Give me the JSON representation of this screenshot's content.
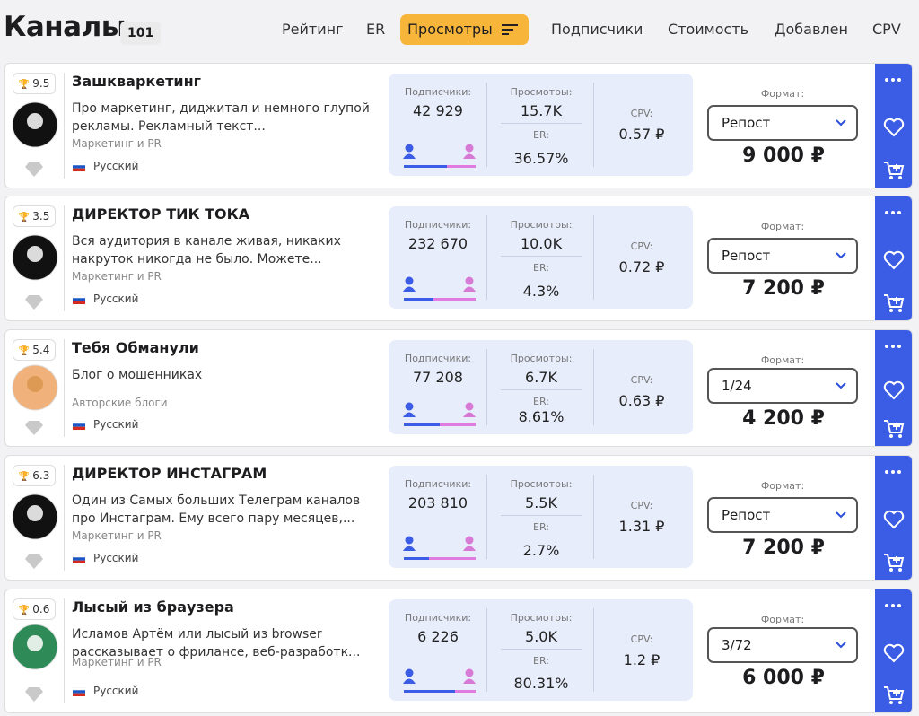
{
  "header": {
    "title": "Каналы",
    "count": "101",
    "tabs": [
      "Рейтинг",
      "ER",
      "Просмотры",
      "Подписчики",
      "Стоимость",
      "Добавлен",
      "CPV"
    ],
    "active_tab": 2
  },
  "labels": {
    "subscribers": "Подписчики:",
    "views": "Просмотры:",
    "er": "ER:",
    "cpv": "CPV:",
    "format": "Формат:"
  },
  "channels": [
    {
      "rating": "9.5",
      "name": "Зашкваркетинг",
      "description": "Про маркетинг, диджитал и немного глупой рекламы. Рекламный текст...",
      "category": "Маркетинг и PR",
      "language": "Русский",
      "subscribers": "42 929",
      "views": "15.7K",
      "er": "36.57%",
      "cpv": "0.57 ₽",
      "format": "Репост",
      "price": "9 000 ₽",
      "male_share": 60
    },
    {
      "rating": "3.5",
      "name": "ДИРЕКТОР ТИК ТОКА",
      "description": "Вся аудитория в канале живая, никаких накруток никогда не было. Можете...",
      "category": "Маркетинг и PR",
      "language": "Русский",
      "subscribers": "232 670",
      "views": "10.0K",
      "er": "4.3%",
      "cpv": "0.72 ₽",
      "format": "Репост",
      "price": "7 200 ₽",
      "male_share": 41
    },
    {
      "rating": "5.4",
      "name": "Тебя Обманули",
      "description": "Блог о мошенниках",
      "category": "Авторские блоги",
      "language": "Русский",
      "subscribers": "77 208",
      "views": "6.7K",
      "er": "8.61%",
      "cpv": "0.63 ₽",
      "format": "1/24",
      "price": "4 200 ₽",
      "male_share": 50
    },
    {
      "rating": "6.3",
      "name": "ДИРЕКТОР ИНСТАГРАМ",
      "description": "Один из Самых больших Телеграм каналов про Инстаграм. Ему всего пару месяцев,...",
      "category": "Маркетинг и PR",
      "language": "Русский",
      "subscribers": "203 810",
      "views": "5.5K",
      "er": "2.7%",
      "cpv": "1.31 ₽",
      "format": "Репост",
      "price": "7 200 ₽",
      "male_share": 35
    },
    {
      "rating": "0.6",
      "name": "Лысый из браузера",
      "description": "Исламов Артём или лысый из browser рассказывает о фрилансе, веб-разработк...",
      "category": "Маркетинг и PR",
      "language": "Русский",
      "subscribers": "6 226",
      "views": "5.0K",
      "er": "80.31%",
      "cpv": "1.2 ₽",
      "format": "3/72",
      "price": "6 000 ₽",
      "male_share": 71
    }
  ]
}
